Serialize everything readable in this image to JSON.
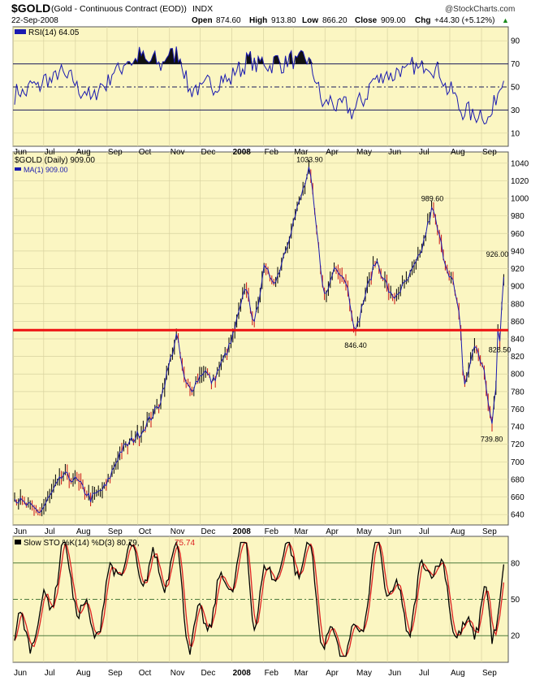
{
  "header": {
    "symbol": "$GOLD",
    "description": "(Gold - Continuous Contract (EOD))",
    "exchange": "INDX",
    "date": "22-Sep-2008",
    "watermark": "@StockCharts.com",
    "open_label": "Open",
    "open": "874.60",
    "high_label": "High",
    "high": "913.80",
    "low_label": "Low",
    "low": "866.20",
    "close_label": "Close",
    "close": "909.00",
    "chg_label": "Chg",
    "chg": "+44.30 (+5.12%)",
    "chg_up_glyph": "▲"
  },
  "colors": {
    "panel_bg": "#fbf6c2",
    "ma_line": "#1a1ab0",
    "support_line": "#ee1111",
    "sto_d": "#dd2222",
    "sto_k": "#000000",
    "grid": "#d8d2a0",
    "guide_line": "#1a1a5a",
    "sto_guide": "#4c7a3c"
  },
  "rsi": {
    "label": "RSI(14) 64.05",
    "yticks": [
      "90",
      "70",
      "50",
      "30",
      "10"
    ],
    "levels": [
      70,
      50,
      30
    ]
  },
  "price": {
    "legend_title": "$GOLD (Daily) 909.00",
    "legend_ma": "MA(1) 909.00",
    "yticks": [
      "1040",
      "1020",
      "1000",
      "980",
      "960",
      "940",
      "920",
      "900",
      "880",
      "860",
      "840",
      "820",
      "800",
      "780",
      "760",
      "740",
      "720",
      "700",
      "680",
      "660",
      "640"
    ],
    "annotations": [
      "1033.90",
      "989.60",
      "926.00",
      "846.40",
      "828.50",
      "739.80"
    ],
    "support_level": 850
  },
  "sto": {
    "label_prefix": "Slow STO %K(14) %D(3) 80.79,",
    "label_d": "75.74",
    "yticks": [
      "80",
      "50",
      "20"
    ]
  },
  "xaxis": {
    "labels": [
      "Jun",
      "Jul",
      "Aug",
      "Sep",
      "Oct",
      "Nov",
      "Dec",
      "2008",
      "Feb",
      "Mar",
      "Apr",
      "May",
      "Jun",
      "Jul",
      "Aug",
      "Sep"
    ],
    "bold_label": "2008"
  },
  "chart_data": {
    "type": "line",
    "title": "$GOLD (Gold - Continuous Contract (EOD)) INDX",
    "x_labels": [
      "Jun",
      "Jul",
      "Aug",
      "Sep",
      "Oct",
      "Nov",
      "Dec",
      "2008",
      "Feb",
      "Mar",
      "Apr",
      "May",
      "Jun",
      "Jul",
      "Aug",
      "Sep"
    ],
    "price_ylim": [
      630,
      1050
    ],
    "rsi_ylim": [
      0,
      100
    ],
    "sto_ylim": [
      0,
      100
    ],
    "grid": true,
    "price_anchors": [
      {
        "x": "2007-06-01",
        "y": 660
      },
      {
        "x": "2007-06-12",
        "y": 652
      },
      {
        "x": "2007-06-28",
        "y": 643
      },
      {
        "x": "2007-07-20",
        "y": 685
      },
      {
        "x": "2007-08-03",
        "y": 678
      },
      {
        "x": "2007-08-16",
        "y": 658
      },
      {
        "x": "2007-08-31",
        "y": 672
      },
      {
        "x": "2007-09-14",
        "y": 712
      },
      {
        "x": "2007-10-05",
        "y": 735
      },
      {
        "x": "2007-10-22",
        "y": 765
      },
      {
        "x": "2007-11-08",
        "y": 845
      },
      {
        "x": "2007-11-16",
        "y": 790
      },
      {
        "x": "2007-11-22",
        "y": 782
      },
      {
        "x": "2007-12-05",
        "y": 805
      },
      {
        "x": "2007-12-13",
        "y": 790
      },
      {
        "x": "2007-12-31",
        "y": 835
      },
      {
        "x": "2008-01-15",
        "y": 900
      },
      {
        "x": "2008-01-23",
        "y": 855
      },
      {
        "x": "2008-02-01",
        "y": 920
      },
      {
        "x": "2008-02-13",
        "y": 905
      },
      {
        "x": "2008-02-28",
        "y": 965
      },
      {
        "x": "2008-03-17",
        "y": 1033.9
      },
      {
        "x": "2008-03-28",
        "y": 920
      },
      {
        "x": "2008-04-01",
        "y": 885
      },
      {
        "x": "2008-04-11",
        "y": 925
      },
      {
        "x": "2008-04-22",
        "y": 905
      },
      {
        "x": "2008-05-01",
        "y": 846.4
      },
      {
        "x": "2008-05-09",
        "y": 885
      },
      {
        "x": "2008-05-21",
        "y": 930
      },
      {
        "x": "2008-06-06",
        "y": 885
      },
      {
        "x": "2008-06-20",
        "y": 905
      },
      {
        "x": "2008-07-03",
        "y": 935
      },
      {
        "x": "2008-07-15",
        "y": 989.6
      },
      {
        "x": "2008-07-28",
        "y": 925
      },
      {
        "x": "2008-08-04",
        "y": 905
      },
      {
        "x": "2008-08-11",
        "y": 860
      },
      {
        "x": "2008-08-15",
        "y": 785
      },
      {
        "x": "2008-08-26",
        "y": 835
      },
      {
        "x": "2008-09-04",
        "y": 800
      },
      {
        "x": "2008-09-11",
        "y": 739.8
      },
      {
        "x": "2008-09-15",
        "y": 780
      },
      {
        "x": "2008-09-17",
        "y": 850
      },
      {
        "x": "2008-09-18",
        "y": 926
      },
      {
        "x": "2008-09-19",
        "y": 828.5
      },
      {
        "x": "2008-09-22",
        "y": 909
      }
    ],
    "rsi_anchors": [
      {
        "x": "2007-06-01",
        "y": 42
      },
      {
        "x": "2007-07-20",
        "y": 62
      },
      {
        "x": "2007-08-16",
        "y": 40
      },
      {
        "x": "2007-09-14",
        "y": 68
      },
      {
        "x": "2007-10-01",
        "y": 76
      },
      {
        "x": "2007-10-22",
        "y": 70
      },
      {
        "x": "2007-11-08",
        "y": 82
      },
      {
        "x": "2007-11-22",
        "y": 46
      },
      {
        "x": "2007-12-31",
        "y": 58
      },
      {
        "x": "2008-01-15",
        "y": 72
      },
      {
        "x": "2008-02-01",
        "y": 70
      },
      {
        "x": "2008-03-17",
        "y": 74
      },
      {
        "x": "2008-03-28",
        "y": 38
      },
      {
        "x": "2008-05-01",
        "y": 30
      },
      {
        "x": "2008-05-21",
        "y": 58
      },
      {
        "x": "2008-07-15",
        "y": 70
      },
      {
        "x": "2008-08-15",
        "y": 28
      },
      {
        "x": "2008-09-11",
        "y": 24
      },
      {
        "x": "2008-09-22",
        "y": 64.05
      }
    ],
    "sto_anchors": [
      {
        "x": "2007-06-01",
        "y": 18
      },
      {
        "x": "2007-06-28",
        "y": 30
      },
      {
        "x": "2007-07-20",
        "y": 88
      },
      {
        "x": "2007-08-16",
        "y": 20
      },
      {
        "x": "2007-09-14",
        "y": 85
      },
      {
        "x": "2007-10-05",
        "y": 75
      },
      {
        "x": "2007-10-22",
        "y": 72
      },
      {
        "x": "2007-11-08",
        "y": 85
      },
      {
        "x": "2007-11-22",
        "y": 15
      },
      {
        "x": "2007-12-31",
        "y": 70
      },
      {
        "x": "2008-01-15",
        "y": 90
      },
      {
        "x": "2008-01-23",
        "y": 40
      },
      {
        "x": "2008-02-13",
        "y": 82
      },
      {
        "x": "2008-03-17",
        "y": 85
      },
      {
        "x": "2008-04-01",
        "y": 15
      },
      {
        "x": "2008-05-01",
        "y": 10
      },
      {
        "x": "2008-05-21",
        "y": 90
      },
      {
        "x": "2008-06-20",
        "y": 30
      },
      {
        "x": "2008-07-15",
        "y": 90
      },
      {
        "x": "2008-08-04",
        "y": 40
      },
      {
        "x": "2008-08-15",
        "y": 12
      },
      {
        "x": "2008-09-04",
        "y": 55
      },
      {
        "x": "2008-09-11",
        "y": 10
      },
      {
        "x": "2008-09-22",
        "y": 80.79
      }
    ],
    "sto_k_last": 80.79,
    "sto_d_last": 75.74,
    "support_level": 850
  }
}
